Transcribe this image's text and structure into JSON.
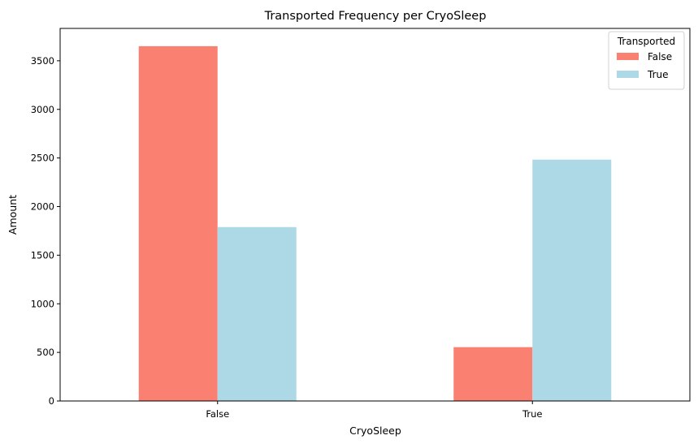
{
  "chart_data": {
    "type": "bar",
    "title": "Transported Frequency per CryoSleep",
    "xlabel": "CryoSleep",
    "ylabel": "Amount",
    "categories": [
      "False",
      "True"
    ],
    "series": [
      {
        "name": "False",
        "values": [
          3650,
          554
        ],
        "color": "#fa8072"
      },
      {
        "name": "True",
        "values": [
          1789,
          2483
        ],
        "color": "#add8e6"
      }
    ],
    "ylim": [
      0,
      3833
    ],
    "yticks": [
      0,
      500,
      1000,
      1500,
      2000,
      2500,
      3000,
      3500
    ],
    "grid": false,
    "legend": {
      "title": "Transported",
      "position": "top-right"
    }
  }
}
